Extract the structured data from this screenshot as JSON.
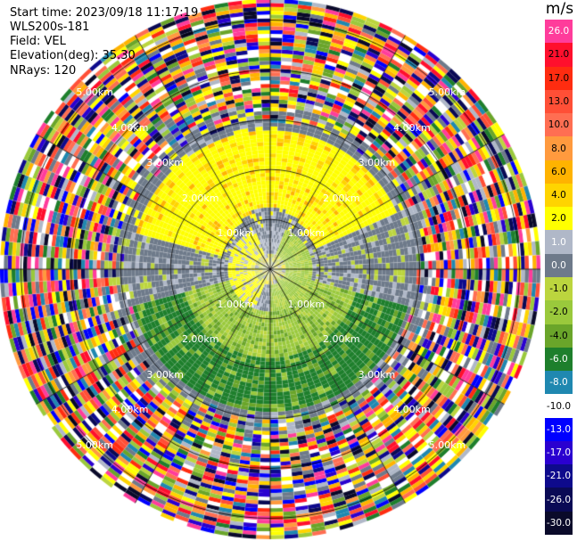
{
  "header": {
    "start_time": "Start time: 2023/09/18 11:17:19",
    "instrument": "WLS200s-181",
    "field": "Field: VEL",
    "elevation": "Elevation(deg): 35.30",
    "nrays": "NRays: 120"
  },
  "colorbar": {
    "unit": "m/s",
    "ticks": [
      {
        "label": "26.0",
        "color": "#ff3c9b",
        "text_color": "#ffffff"
      },
      {
        "label": "21.0",
        "color": "#ff0f2d",
        "text_color": "#000000"
      },
      {
        "label": "17.0",
        "color": "#ff2c10",
        "text_color": "#000000"
      },
      {
        "label": "13.0",
        "color": "#ff4f36",
        "text_color": "#000000"
      },
      {
        "label": "10.0",
        "color": "#ff6e52",
        "text_color": "#000000"
      },
      {
        "label": "8.0",
        "color": "#ff9a3e",
        "text_color": "#000000"
      },
      {
        "label": "6.0",
        "color": "#ffb300",
        "text_color": "#000000"
      },
      {
        "label": "4.0",
        "color": "#ffd400",
        "text_color": "#000000"
      },
      {
        "label": "2.0",
        "color": "#ffff00",
        "text_color": "#000000"
      },
      {
        "label": "1.0",
        "color": "#b0b8c8",
        "text_color": "#ffffff"
      },
      {
        "label": "0.0",
        "color": "#6e7a8a",
        "text_color": "#ffffff"
      },
      {
        "label": "-1.0",
        "color": "#bcd53e",
        "text_color": "#000000"
      },
      {
        "label": "-2.0",
        "color": "#9ac93c",
        "text_color": "#000000"
      },
      {
        "label": "-4.0",
        "color": "#6aa52a",
        "text_color": "#000000"
      },
      {
        "label": "-6.0",
        "color": "#1e7f2c",
        "text_color": "#ffffff"
      },
      {
        "label": "-8.0",
        "color": "#1f88b0",
        "text_color": "#ffffff"
      },
      {
        "label": "-10.0",
        "color": "#ffffff",
        "text_color": "#000000"
      },
      {
        "label": "-13.0",
        "color": "#0000ff",
        "text_color": "#ffffff"
      },
      {
        "label": "-17.0",
        "color": "#2a00d0",
        "text_color": "#ffffff"
      },
      {
        "label": "-21.0",
        "color": "#0e0a8c",
        "text_color": "#ffffff"
      },
      {
        "label": "-26.0",
        "color": "#0a0a55",
        "text_color": "#ffffff"
      },
      {
        "label": "-30.0",
        "color": "#0a0a2a",
        "text_color": "#ffffff"
      }
    ]
  },
  "chart_data": {
    "type": "heatmap",
    "projection": "polar_ppi",
    "field": "VEL",
    "units": "m/s",
    "n_rays": 120,
    "elevation_deg": 35.3,
    "range_rings_km": [
      1.0,
      2.0,
      3.0,
      4.0,
      5.0
    ],
    "ring_labels": [
      "1.00km",
      "2.00km",
      "3.00km",
      "4.00km",
      "5.00km"
    ],
    "max_range_km": 5.8,
    "spokes_deg": [
      0,
      30,
      60,
      90,
      120,
      150,
      180,
      210,
      240,
      270,
      300,
      330
    ],
    "noise_beyond_km": 3.1,
    "regions": [
      {
        "desc": "near-zero gray band",
        "range_km": [
          0.0,
          1.6
        ],
        "value_mps": 0.0
      },
      {
        "desc": "positive yellow north",
        "azimuth_deg": [
          290,
          60
        ],
        "range_km": [
          1.0,
          3.0
        ],
        "value_mps": 2.0
      },
      {
        "desc": "negative green south",
        "azimuth_deg": [
          110,
          250
        ],
        "range_km": [
          0.8,
          3.1
        ],
        "value_mps": -4.0
      }
    ]
  }
}
